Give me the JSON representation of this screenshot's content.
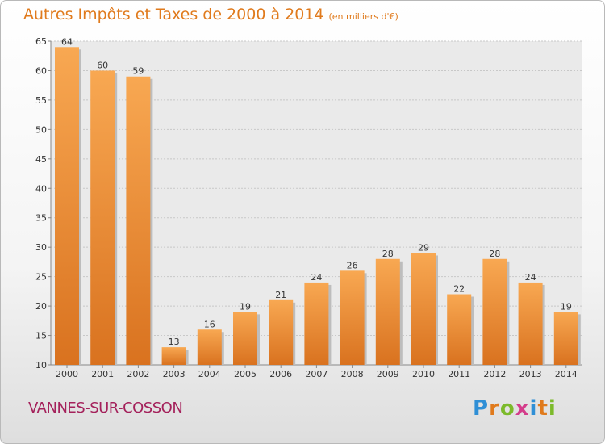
{
  "title": "Autres Impôts et Taxes de 2000 à 2014",
  "title_unit": "(en milliers d'€)",
  "commune": "VANNES-SUR-COSSON",
  "logo_letters": [
    "P",
    "r",
    "o",
    "x",
    "i",
    "t",
    "i"
  ],
  "colors": {
    "bar_light": "#f8a852",
    "bar_dark": "#d9721f",
    "title": "#e07a1c",
    "commune": "#a4215b"
  },
  "chart_data": {
    "type": "bar",
    "categories": [
      "2000",
      "2001",
      "2002",
      "2003",
      "2004",
      "2005",
      "2006",
      "2007",
      "2008",
      "2009",
      "2010",
      "2011",
      "2012",
      "2013",
      "2014"
    ],
    "values": [
      64,
      60,
      59,
      13,
      16,
      19,
      21,
      24,
      26,
      28,
      29,
      22,
      28,
      24,
      19
    ],
    "ylim": [
      10,
      65
    ],
    "yticks": [
      10,
      15,
      20,
      25,
      30,
      35,
      40,
      45,
      50,
      55,
      60,
      65
    ],
    "grid": true,
    "xlabel": "",
    "ylabel": ""
  }
}
